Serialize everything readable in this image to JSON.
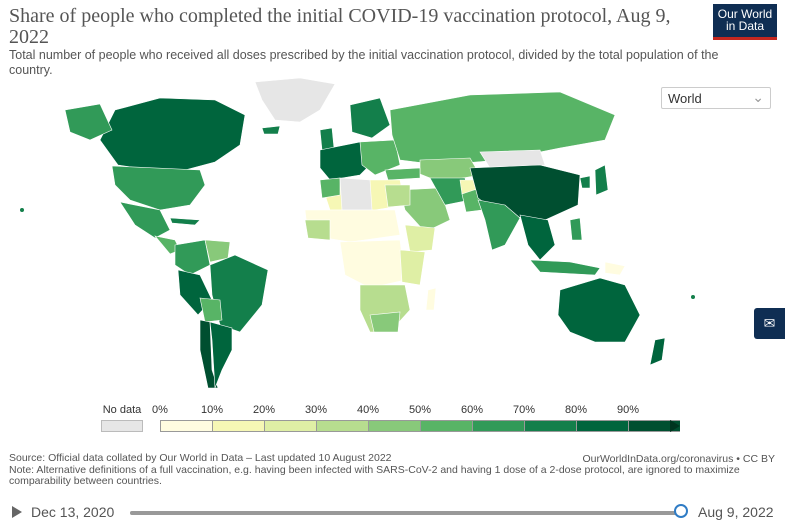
{
  "header": {
    "title": "Share of people who completed the initial COVID-19 vaccination protocol, Aug 9, 2022",
    "subtitle": "Total number of people who received all doses prescribed by the initial vaccination protocol, divided by the total population of the country.",
    "logo_line1": "Our World",
    "logo_line2": "in Data"
  },
  "region_select": {
    "value": "World"
  },
  "legend": {
    "no_data_label": "No data",
    "tick_labels": [
      "0%",
      "10%",
      "20%",
      "30%",
      "40%",
      "50%",
      "60%",
      "70%",
      "80%",
      "90%"
    ],
    "colors": [
      "#fffce0",
      "#f6f7b5",
      "#dfefa5",
      "#b7dd8f",
      "#88c97a",
      "#58b466",
      "#319a58",
      "#137f4b",
      "#00653d",
      "#004f30"
    ],
    "no_data_color": "#e6e6e6"
  },
  "footer": {
    "source": "Source: Official data collated by Our World in Data – Last updated 10 August 2022",
    "credit": "OurWorldInData.org/coronavirus • CC BY",
    "note": "Note: Alternative definitions of a full vaccination, e.g. having been infected with SARS-CoV-2 and having 1 dose of a 2-dose protocol, are ignored to maximize comparability between countries."
  },
  "timeline": {
    "start_date": "Dec 13, 2020",
    "end_date": "Aug 9, 2022",
    "position_fraction": 1.0
  }
}
